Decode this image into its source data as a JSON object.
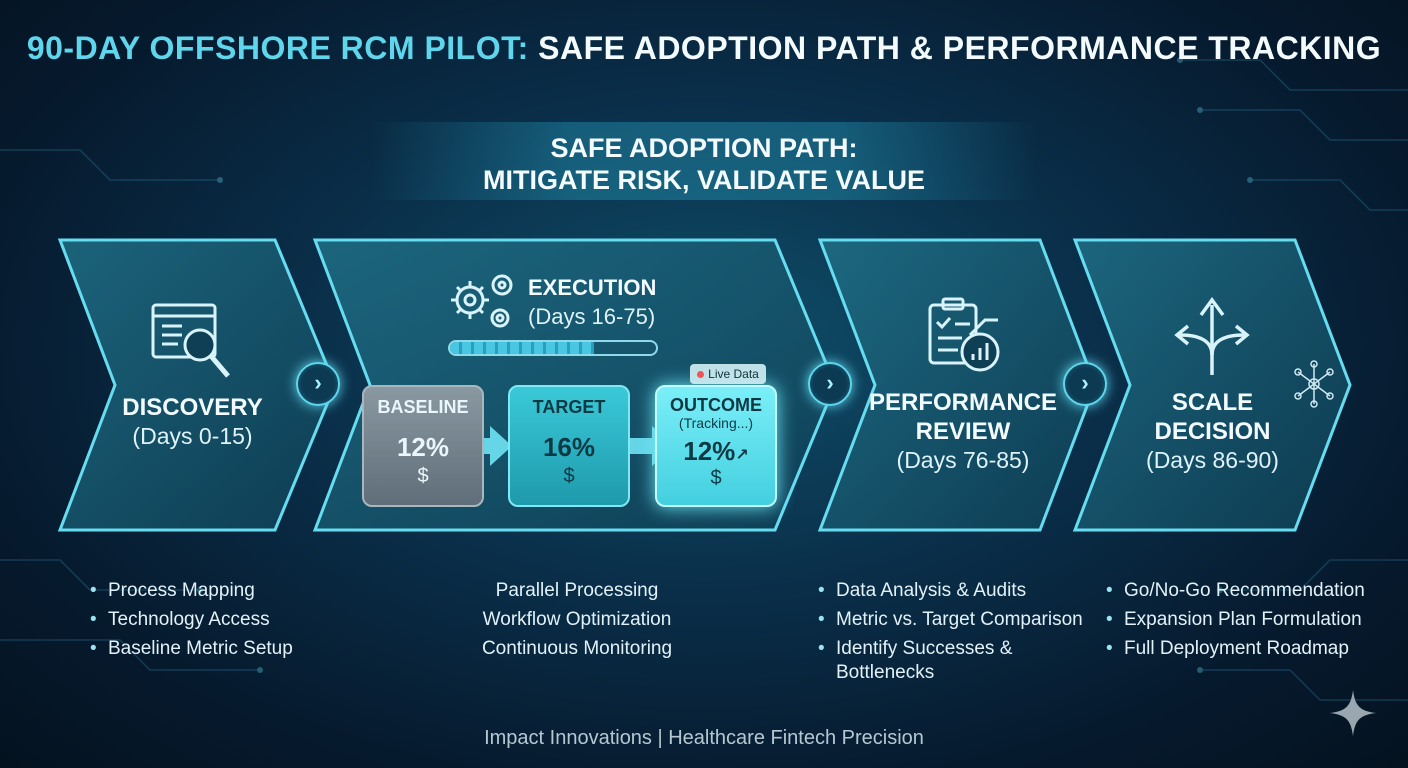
{
  "title": {
    "accent": "90-DAY OFFSHORE RCM PILOT:",
    "rest": " SAFE ADOPTION PATH & PERFORMANCE TRACKING"
  },
  "banner": {
    "line1": "SAFE ADOPTION PATH:",
    "line2": "MITIGATE RISK, VALIDATE VALUE"
  },
  "stages": [
    {
      "name": "DISCOVERY",
      "days": "(Days 0-15)",
      "icon": "magnifier-document-icon",
      "bullets": [
        "Process Mapping",
        "Technology Access",
        "Baseline Metric Setup"
      ]
    },
    {
      "name": "EXECUTION",
      "days": "(Days 16-75)",
      "icon": "gears-icon",
      "bullets": [
        "Parallel Processing",
        "Workflow Optimization",
        "Continuous Monitoring"
      ]
    },
    {
      "name_line1": "PERFORMANCE",
      "name_line2": "REVIEW",
      "days": "(Days 76-85)",
      "icon": "clipboard-chart-icon",
      "bullets": [
        "Data Analysis & Audits",
        "Metric vs. Target Comparison",
        "Identify Successes & Bottlenecks"
      ]
    },
    {
      "name_line1": "SCALE",
      "name_line2": "DECISION",
      "days": "(Days 86-90)",
      "icon": "branching-arrows-icon",
      "bullets": [
        "Go/No-Go Recommendation",
        "Expansion Plan Formulation",
        "Full Deployment Roadmap"
      ]
    }
  ],
  "execution_progress": 0.7,
  "metrics": {
    "baseline": {
      "label": "BASELINE",
      "value": "12%"
    },
    "target": {
      "label": "TARGET",
      "value": "16%"
    },
    "outcome": {
      "label": "OUTCOME",
      "sub": "(Tracking...)",
      "value": "12%",
      "badge": "Live Data"
    }
  },
  "footer": "Impact Innovations | Healthcare Fintech Precision",
  "colors": {
    "accent": "#5fd6ec",
    "baseline_box": "#7b8a94",
    "target_box": "#2bb8c8",
    "outcome_box": "#5fe0ee"
  }
}
